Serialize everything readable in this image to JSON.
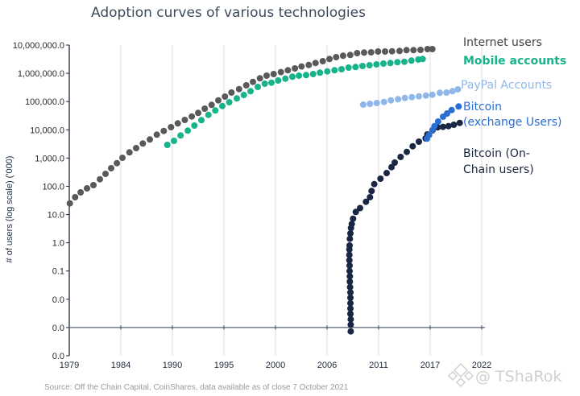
{
  "chart_data": {
    "type": "scatter",
    "title": "Adoption curves of various technologies",
    "xlabel": "",
    "ylabel": "# of users (log scale) ('000)",
    "yscale": "log",
    "xlim": [
      1979,
      2022
    ],
    "ylim": [
      0.0001,
      10000000
    ],
    "x_axis_crosses_at": 0.001,
    "grid": "vertical",
    "legend_placement": "right",
    "source": "Source: Off the Chain Capital, CoinShares, data available as of close 7 October 2021",
    "x_ticks": [
      "1979",
      "1984",
      "1990",
      "1995",
      "2000",
      "2006",
      "2011",
      "2017",
      "2022"
    ],
    "y_ticks": [
      {
        "value": 10000000,
        "label": "10,000,000.0"
      },
      {
        "value": 1000000,
        "label": "1,000,000.0"
      },
      {
        "value": 100000,
        "label": "100,000.0"
      },
      {
        "value": 10000,
        "label": "10,000.0"
      },
      {
        "value": 1000,
        "label": "1,000.0"
      },
      {
        "value": 100,
        "label": "100.0"
      },
      {
        "value": 10,
        "label": "10.0"
      },
      {
        "value": 1,
        "label": "1.0"
      },
      {
        "value": 0.1,
        "label": "0.1"
      },
      {
        "value": 0.01,
        "label": "0.0"
      },
      {
        "value": 0.001,
        "label": "0.0"
      },
      {
        "value": 0.0001,
        "label": "0.0"
      }
    ],
    "series": [
      {
        "key": "internet",
        "name": "Internet users",
        "legend_lines": [
          "Internet users"
        ],
        "color": "#595959",
        "label_color": "#404040",
        "points": [
          [
            1979.06,
            24.8
          ],
          [
            1979.61,
            41.1
          ],
          [
            1980.18,
            61
          ],
          [
            1980.85,
            84.6
          ],
          [
            1981.52,
            110
          ],
          [
            1982.19,
            177
          ],
          [
            1982.78,
            275
          ],
          [
            1983.37,
            436
          ],
          [
            1983.96,
            659
          ],
          [
            1984.54,
            1020
          ],
          [
            1985.27,
            1590
          ],
          [
            1985.97,
            2250
          ],
          [
            1986.67,
            3270
          ],
          [
            1987.4,
            4540
          ],
          [
            1988.13,
            6730
          ],
          [
            1988.85,
            9100
          ],
          [
            1989.61,
            12400
          ],
          [
            1990.31,
            16900
          ],
          [
            1991.04,
            22400
          ],
          [
            1991.77,
            29700
          ],
          [
            1992.44,
            39600
          ],
          [
            1993.13,
            56100
          ],
          [
            1993.84,
            76400
          ],
          [
            1994.54,
            110000
          ],
          [
            1995.23,
            150000
          ],
          [
            1995.91,
            208000
          ],
          [
            1996.7,
            276000
          ],
          [
            1997.45,
            376000
          ],
          [
            1998.15,
            499000
          ],
          [
            1998.88,
            666000
          ],
          [
            1999.58,
            827000
          ],
          [
            2000.31,
            942000
          ],
          [
            2001.06,
            1100000
          ],
          [
            2001.79,
            1280000
          ],
          [
            2002.52,
            1490000
          ],
          [
            2003.21,
            1740000
          ],
          [
            2003.97,
            1980000
          ],
          [
            2004.67,
            2310000
          ],
          [
            2005.43,
            2690000
          ],
          [
            2006.13,
            3210000
          ],
          [
            2006.82,
            3740000
          ],
          [
            2007.55,
            4180000
          ],
          [
            2008.29,
            4460000
          ],
          [
            2009.01,
            5190000
          ],
          [
            2009.74,
            5430000
          ],
          [
            2010.47,
            5540000
          ],
          [
            2011.19,
            5920000
          ],
          [
            2011.92,
            5920000
          ],
          [
            2012.65,
            6040000
          ],
          [
            2013.43,
            6200000
          ],
          [
            2014.16,
            6610000
          ],
          [
            2014.89,
            6610000
          ],
          [
            2015.62,
            6740000
          ],
          [
            2016.35,
            7210000
          ],
          [
            2016.85,
            7210000
          ]
        ]
      },
      {
        "key": "mobile",
        "name": "Mobile accounts",
        "legend_lines": [
          "Mobile accounts"
        ],
        "color": "#17b38a",
        "label_color": "#17b38a",
        "points": [
          [
            1989.22,
            2920
          ],
          [
            1989.92,
            4060
          ],
          [
            1990.61,
            6310
          ],
          [
            1991.35,
            9360
          ],
          [
            1992.04,
            14100
          ],
          [
            1992.77,
            21900
          ],
          [
            1993.5,
            33800
          ],
          [
            1994.23,
            48200
          ],
          [
            1994.96,
            69600
          ],
          [
            1995.68,
            94800
          ],
          [
            1996.47,
            129000
          ],
          [
            1997.2,
            171000
          ],
          [
            1997.9,
            233000
          ],
          [
            1998.65,
            330000
          ],
          [
            1999.38,
            429000
          ],
          [
            2000.08,
            467000
          ],
          [
            2000.78,
            557000
          ],
          [
            2001.53,
            648000
          ],
          [
            2002.26,
            759000
          ],
          [
            2002.94,
            826000
          ],
          [
            2003.69,
            865000
          ],
          [
            2004.42,
            942000
          ],
          [
            2005.14,
            1050000
          ],
          [
            2005.9,
            1170000
          ],
          [
            2006.66,
            1280000
          ],
          [
            2007.39,
            1400000
          ],
          [
            2008.12,
            1590000
          ],
          [
            2008.84,
            1670000
          ],
          [
            2009.57,
            1820000
          ],
          [
            2010.3,
            1940000
          ],
          [
            2011.02,
            2070000
          ],
          [
            2011.75,
            2210000
          ],
          [
            2012.48,
            2310000
          ],
          [
            2013.21,
            2470000
          ],
          [
            2013.94,
            2570000
          ],
          [
            2014.67,
            2820000
          ],
          [
            2015.39,
            3070000
          ],
          [
            2015.84,
            3210000
          ]
        ]
      },
      {
        "key": "paypal",
        "name": "PayPal Accounts",
        "legend_lines": [
          "PayPal Accounts"
        ],
        "color": "#8fb7ea",
        "label_color": "#8fb7ea",
        "points": [
          [
            2009.65,
            77800
          ],
          [
            2010.35,
            83200
          ],
          [
            2011.06,
            88800
          ],
          [
            2011.81,
            96600
          ],
          [
            2012.53,
            110000
          ],
          [
            2013.27,
            121000
          ],
          [
            2013.99,
            134000
          ],
          [
            2014.72,
            143000
          ],
          [
            2015.45,
            153000
          ],
          [
            2016.18,
            163000
          ],
          [
            2016.85,
            175000
          ],
          [
            2017.63,
            204000
          ],
          [
            2018.33,
            208000
          ],
          [
            2018.95,
            233000
          ],
          [
            2019.51,
            271000
          ]
        ]
      },
      {
        "key": "onchain",
        "name": "Bitcoin (On-Chain users)",
        "legend_lines": [
          "Bitcoin (On-",
          "Chain users)"
        ],
        "color": "#1a2744",
        "label_color": "#1a2540",
        "points": [
          [
            2008.34,
            0.00073
          ],
          [
            2008.34,
            0.00126
          ],
          [
            2008.34,
            0.00195
          ],
          [
            2008.31,
            0.00303
          ],
          [
            2008.31,
            0.00471
          ],
          [
            2008.31,
            0.00726
          ],
          [
            2008.31,
            0.0113
          ],
          [
            2008.31,
            0.0175
          ],
          [
            2008.28,
            0.027
          ],
          [
            2008.25,
            0.0419
          ],
          [
            2008.25,
            0.065
          ],
          [
            2008.23,
            0.1
          ],
          [
            2008.23,
            0.156
          ],
          [
            2008.2,
            0.242
          ],
          [
            2008.2,
            0.372
          ],
          [
            2008.2,
            0.578
          ],
          [
            2008.23,
            0.802
          ],
          [
            2008.25,
            1.38
          ],
          [
            2008.31,
            2.14
          ],
          [
            2008.37,
            3.33
          ],
          [
            2008.45,
            4.62
          ],
          [
            2008.59,
            7.13
          ],
          [
            2008.87,
            12.4
          ],
          [
            2009.32,
            16.9
          ],
          [
            2009.93,
            28.2
          ],
          [
            2010.35,
            41.1
          ],
          [
            2010.52,
            68.1
          ],
          [
            2010.8,
            120
          ],
          [
            2011.44,
            186
          ],
          [
            2012.09,
            294
          ],
          [
            2012.59,
            475
          ],
          [
            2012.93,
            690
          ],
          [
            2013.54,
            1090
          ],
          [
            2014.19,
            1650
          ],
          [
            2014.8,
            2620
          ],
          [
            2015.45,
            3800
          ],
          [
            2016.15,
            4940
          ],
          [
            2016.33,
            6870
          ],
          [
            2016.88,
            9530
          ],
          [
            2017.41,
            12200
          ],
          [
            2017.97,
            12700
          ],
          [
            2018.53,
            13500
          ],
          [
            2019.09,
            15100
          ],
          [
            2019.71,
            17500
          ]
        ]
      },
      {
        "key": "exchange",
        "name": "Bitcoin (exchange Users)",
        "legend_lines": [
          "Bitcoin",
          "(exchange Users)"
        ],
        "color": "#2a6dd3",
        "label_color": "#2a6dd3",
        "points": [
          [
            2016.29,
            4850
          ],
          [
            2016.52,
            6560
          ],
          [
            2016.85,
            9720
          ],
          [
            2017.07,
            13500
          ],
          [
            2017.46,
            19600
          ],
          [
            2017.97,
            29100
          ],
          [
            2018.39,
            37800
          ],
          [
            2018.87,
            50100
          ],
          [
            2019.59,
            66900
          ]
        ]
      }
    ]
  },
  "watermark": {
    "text": "@ TShaRok",
    "icon": "diamond-logo-icon"
  }
}
